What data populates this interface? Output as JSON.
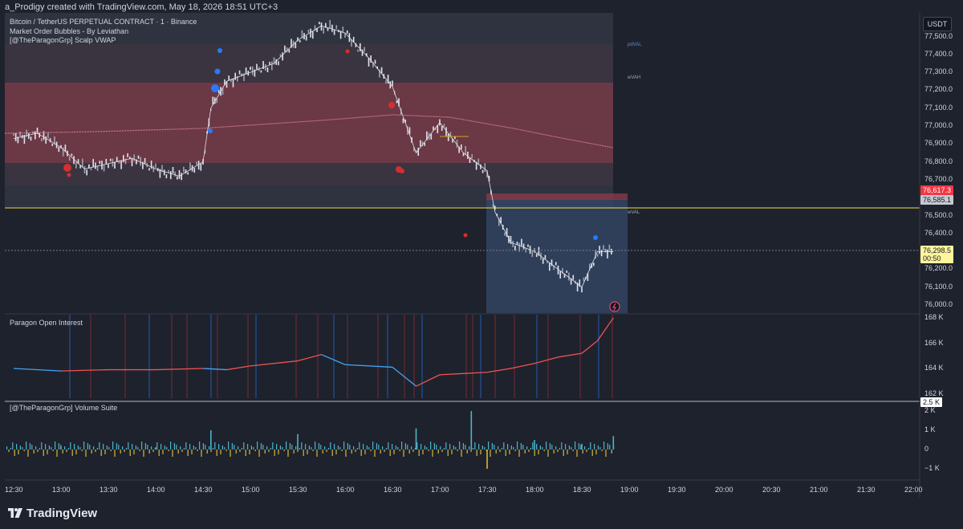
{
  "header": {
    "created_by": "a_Prodigy created with TradingView.com, May 18, 2026 18:51 UTC+3"
  },
  "legend": {
    "symbol": "Bitcoin / TetherUS PERPETUAL CONTRACT · 1 · Binance",
    "indicator1": "Market Order Bubbles - By Leviathan",
    "indicator2": "[@TheParagonGrp] Scalp VWAP"
  },
  "colors": {
    "background": "#1e222d",
    "up_candle": "#e0e3eb",
    "vwap_band_fill": "#6b3845",
    "outer_band_fill": "#2f3340",
    "vwap_line": "#e98ba1",
    "yellow_line": "#f0e04a",
    "range_box": "#35496a",
    "bubble_buy": "#2979ff",
    "bubble_sell": "#d32f2f",
    "oi_up": "#ef5350",
    "oi_down": "#42a5f5",
    "vol_buy": "#4fb3c8",
    "vol_sell": "#d4b83a"
  },
  "price_axis": {
    "currency": "USDT",
    "ticks": [
      "77,500.0",
      "77,400.0",
      "77,300.0",
      "77,200.0",
      "77,100.0",
      "77,000.0",
      "76,900.0",
      "76,800.0",
      "76,700.0",
      "76,500.0",
      "76,400.0",
      "76,200.0",
      "76,100.0",
      "76,000.0"
    ],
    "tag_red": "76,617.3",
    "tag_grey": "76,585.1",
    "tag_last_price": "76,298.5",
    "tag_countdown": "00:50"
  },
  "levels": {
    "pdVAL": "pdVAL",
    "wVAH": "wVAH",
    "wVAL": "wVAL"
  },
  "time_axis": [
    "12:30",
    "13:00",
    "13:30",
    "14:00",
    "14:30",
    "15:00",
    "15:30",
    "16:00",
    "16:30",
    "17:00",
    "17:30",
    "18:00",
    "18:30",
    "19:00",
    "19:30",
    "20:00",
    "20:30",
    "21:00",
    "21:30",
    "22:00"
  ],
  "oi_panel": {
    "title": "Paragon Open Interest",
    "ticks": [
      "168 K",
      "166 K",
      "164 K",
      "162 K"
    ]
  },
  "volume_panel": {
    "title": "[@TheParagonGrp] Volume Suite",
    "tag": "2.5 K",
    "ticks": [
      "2 K",
      "1 K",
      "0",
      "−1 K"
    ]
  },
  "footer": {
    "brand": "TradingView"
  },
  "chart_data": {
    "type": "line",
    "title": "Bitcoin / TetherUS PERPETUAL CONTRACT · 1 · Binance",
    "x_label": "",
    "y_label": "",
    "ylim": [
      75950,
      77620
    ],
    "x": [
      "12:30",
      "12:45",
      "13:00",
      "13:15",
      "13:30",
      "13:45",
      "14:00",
      "14:15",
      "14:30",
      "14:35",
      "14:45",
      "15:00",
      "15:15",
      "15:30",
      "15:45",
      "16:00",
      "16:15",
      "16:30",
      "16:45",
      "17:00",
      "17:15",
      "17:30",
      "17:35",
      "17:45",
      "18:00",
      "18:15",
      "18:30",
      "18:40",
      "18:50"
    ],
    "series": [
      {
        "values": [
          76930,
          76960,
          76880,
          76760,
          76790,
          76820,
          76760,
          76720,
          76800,
          77100,
          77250,
          77300,
          77350,
          77480,
          77560,
          77520,
          77380,
          77220,
          76850,
          77020,
          76850,
          76750,
          76520,
          76350,
          76300,
          76200,
          76100,
          76300,
          76298
        ]
      }
    ],
    "panels": [
      {
        "name": "Paragon Open Interest",
        "type": "line",
        "ylim": [
          161800,
          168200
        ],
        "x": [
          "12:30",
          "13:00",
          "13:30",
          "14:00",
          "14:30",
          "14:45",
          "15:00",
          "15:30",
          "15:45",
          "16:00",
          "16:30",
          "16:45",
          "17:00",
          "17:15",
          "17:30",
          "17:45",
          "18:00",
          "18:15",
          "18:30",
          "18:40",
          "18:50"
        ],
        "values": [
          164000,
          163800,
          163900,
          163900,
          164000,
          163900,
          164200,
          164600,
          165100,
          164300,
          164100,
          162600,
          163500,
          163600,
          163700,
          164000,
          164400,
          164900,
          165200,
          166200,
          168000
        ]
      },
      {
        "name": "[@TheParagonGrp] Volume Suite",
        "type": "bar",
        "ylim": [
          -1000,
          2100
        ],
        "x": [
          "13:00",
          "14:00",
          "14:35",
          "15:30",
          "16:45",
          "17:20",
          "17:30",
          "18:00",
          "18:30",
          "18:50"
        ],
        "values": [
          150,
          120,
          1000,
          800,
          1100,
          2000,
          -1000,
          500,
          300,
          700
        ]
      }
    ]
  }
}
